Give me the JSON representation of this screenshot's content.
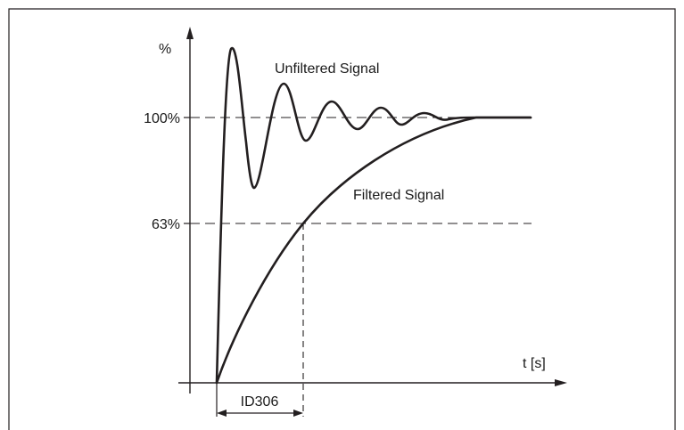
{
  "diagram": {
    "y_unit_label": "%",
    "x_axis_label": "t [s]",
    "tick_100": "100%",
    "tick_63": "63%",
    "unfiltered_label": "Unfiltered Signal",
    "filtered_label": "Filtered Signal",
    "time_constant_label": "ID306",
    "colors": {
      "line": "#231f20",
      "dashed": "#231f20"
    }
  }
}
